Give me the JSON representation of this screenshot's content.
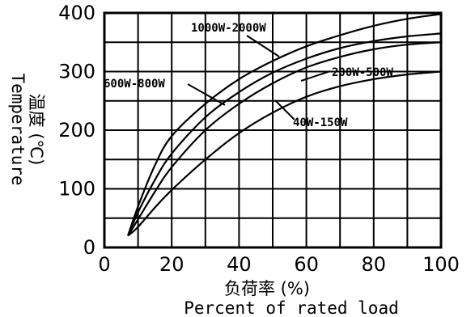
{
  "chart_data": {
    "type": "line",
    "xlabel_cn": "负荷率 (%)",
    "xlabel": "Percent of rated load",
    "ylabel_cn": "温度 (℃)",
    "ylabel": "Temperature",
    "xlim": [
      0,
      100
    ],
    "ylim": [
      0,
      400
    ],
    "xticks": [
      0,
      20,
      40,
      60,
      80,
      100
    ],
    "yticks": [
      0,
      100,
      200,
      300,
      400
    ],
    "grid": true,
    "series": [
      {
        "name": "1000W-2000W",
        "x": [
          7,
          10,
          15,
          20,
          30,
          40,
          50,
          60,
          70,
          80,
          90,
          100
        ],
        "y": [
          20,
          70,
          140,
          190,
          245,
          287,
          318,
          343,
          362,
          378,
          390,
          398
        ]
      },
      {
        "name": "600W-800W",
        "x": [
          7,
          10,
          15,
          20,
          30,
          40,
          50,
          60,
          70,
          80,
          90,
          100
        ],
        "y": [
          20,
          60,
          115,
          160,
          222,
          265,
          298,
          322,
          340,
          352,
          360,
          365
        ]
      },
      {
        "name": "200W-500W",
        "x": [
          7,
          10,
          15,
          20,
          30,
          40,
          50,
          60,
          70,
          80,
          90,
          100
        ],
        "y": [
          20,
          48,
          95,
          137,
          200,
          245,
          280,
          307,
          325,
          338,
          346,
          350
        ]
      },
      {
        "name": "40W-150W",
        "x": [
          7,
          10,
          15,
          20,
          30,
          40,
          50,
          60,
          70,
          80,
          90,
          100
        ],
        "y": [
          20,
          35,
          68,
          98,
          150,
          195,
          230,
          257,
          275,
          287,
          295,
          300
        ]
      }
    ]
  }
}
